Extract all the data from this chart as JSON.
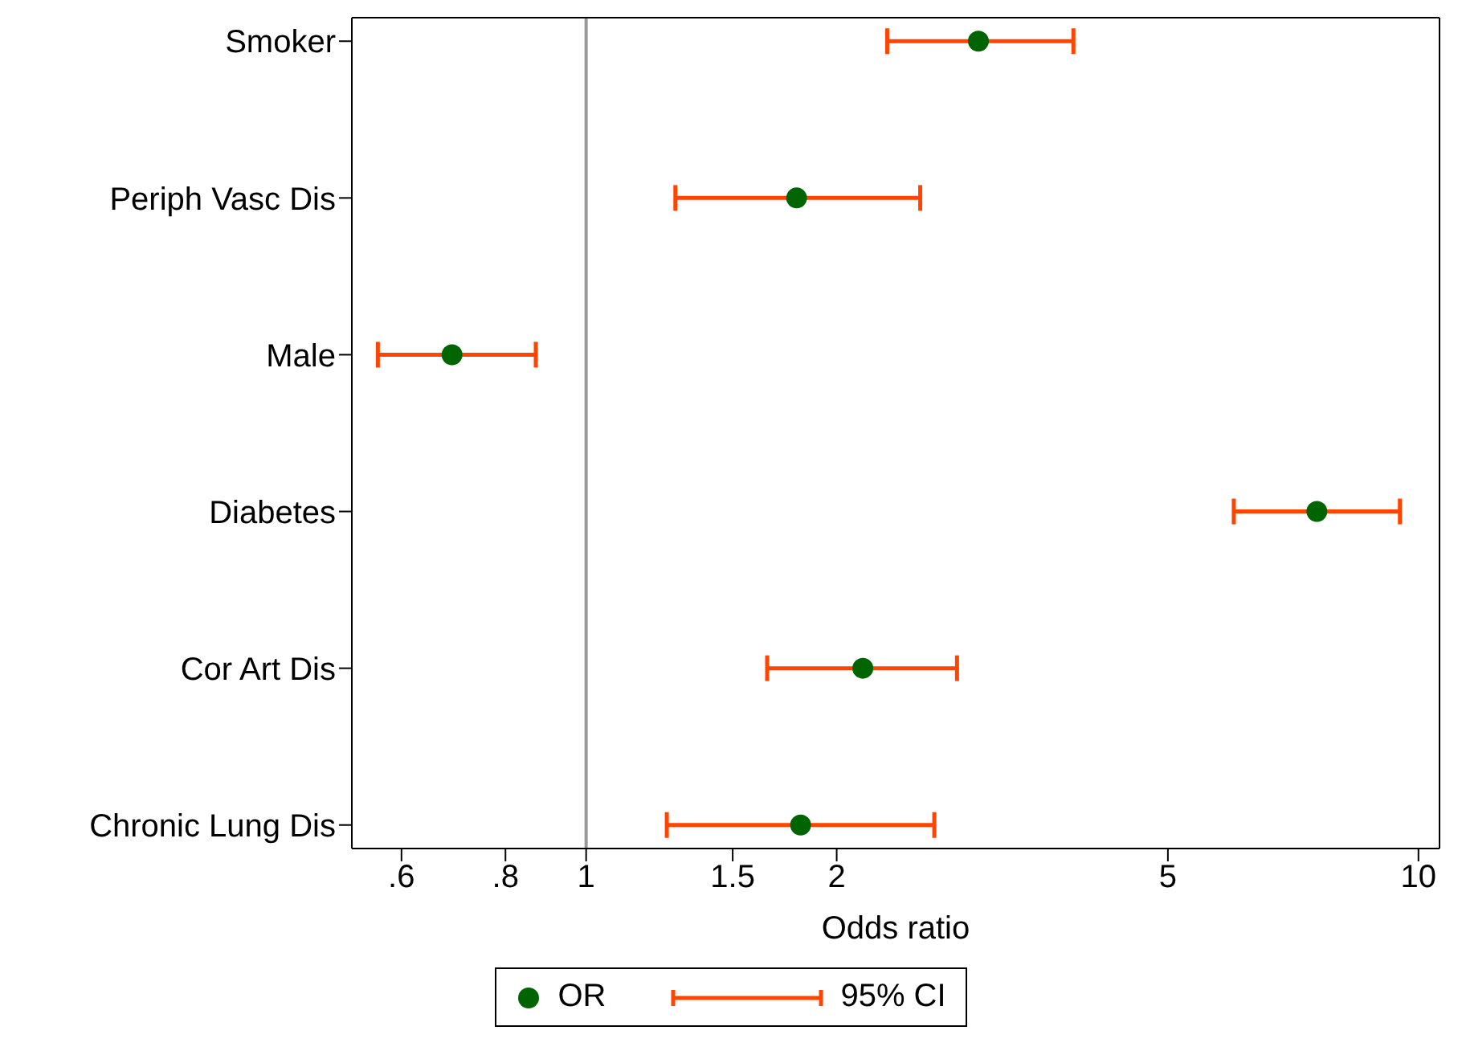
{
  "chart_data": {
    "type": "scatter",
    "orientation": "horizontal",
    "categories": [
      "Smoker",
      "Periph Vasc Dis",
      "Male",
      "Diabetes",
      "Cor Art Dis",
      "Chronic Lung Dis"
    ],
    "series": [
      {
        "name": "OR",
        "color": "#006400",
        "values": [
          2.96,
          1.79,
          0.69,
          7.55,
          2.15,
          1.81
        ],
        "errors": [
          [
            2.3,
            3.85
          ],
          [
            1.28,
            2.52
          ],
          [
            0.562,
            0.87
          ],
          [
            6.0,
            9.5
          ],
          [
            1.65,
            2.79
          ],
          [
            1.25,
            2.62
          ]
        ]
      }
    ],
    "annotations": [
      "95% CI"
    ],
    "marker": "circle",
    "xlim": [
      0.523,
      10.6
    ],
    "xticks": [
      {
        "value": 0.6,
        "label": ".6"
      },
      {
        "value": 0.8,
        "label": ".8"
      },
      1,
      1.5,
      2,
      5,
      10
    ],
    "log": "x",
    "xlabel": "Odds ratio",
    "ref_lines": [
      {
        "axis": "x",
        "value": 1,
        "color": "#999999"
      }
    ],
    "legend": "bottom"
  }
}
